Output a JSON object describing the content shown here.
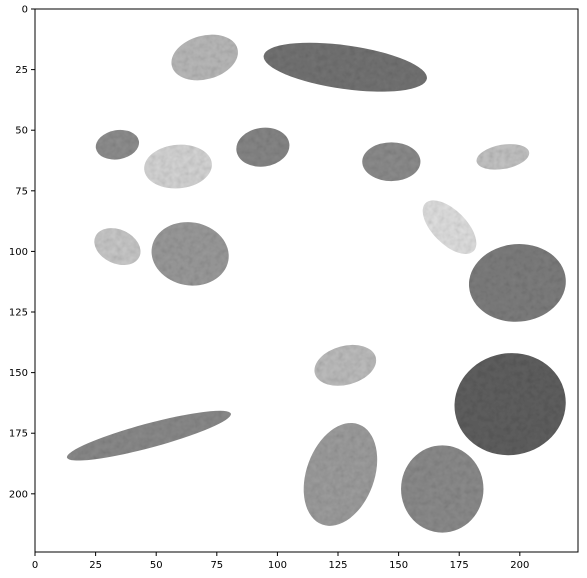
{
  "image_panel": {
    "description_source": "grayscale segmented cell nuclei on white background, displayed with matplotlib-style axes",
    "x_ticks": [
      "0",
      "25",
      "50",
      "75",
      "100",
      "125",
      "150",
      "175",
      "200"
    ],
    "y_ticks": [
      "0",
      "25",
      "50",
      "75",
      "100",
      "125",
      "150",
      "175",
      "200"
    ],
    "x_range": [
      0,
      224
    ],
    "y_range": [
      0,
      224
    ],
    "grid": false,
    "colormap": "gray"
  },
  "nuclei": [
    {
      "name": "nucleus-1",
      "cx": 70,
      "cy": 20,
      "rx": 14,
      "ry": 9,
      "rot": -15,
      "shade": "#b9b9b9"
    },
    {
      "name": "nucleus-2",
      "cx": 128,
      "cy": 24,
      "rx": 34,
      "ry": 9,
      "rot": 8,
      "shade": "#737373"
    },
    {
      "name": "nucleus-3",
      "cx": 34,
      "cy": 56,
      "rx": 9,
      "ry": 6,
      "rot": -10,
      "shade": "#8e8e8e"
    },
    {
      "name": "nucleus-4",
      "cx": 59,
      "cy": 65,
      "rx": 14,
      "ry": 9,
      "rot": -5,
      "shade": "#d5d5d5"
    },
    {
      "name": "nucleus-5",
      "cx": 94,
      "cy": 57,
      "rx": 11,
      "ry": 8,
      "rot": -8,
      "shade": "#868686"
    },
    {
      "name": "nucleus-6",
      "cx": 147,
      "cy": 63,
      "rx": 12,
      "ry": 8,
      "rot": 0,
      "shade": "#8c8c8c"
    },
    {
      "name": "nucleus-7",
      "cx": 193,
      "cy": 61,
      "rx": 11,
      "ry": 5,
      "rot": -10,
      "shade": "#c3c3c3"
    },
    {
      "name": "nucleus-8",
      "cx": 171,
      "cy": 90,
      "rx": 14,
      "ry": 7,
      "rot": 45,
      "shade": "#e0e0e0"
    },
    {
      "name": "nucleus-9",
      "cx": 34,
      "cy": 98,
      "rx": 10,
      "ry": 7,
      "rot": 25,
      "shade": "#c8c8c8"
    },
    {
      "name": "nucleus-10",
      "cx": 64,
      "cy": 101,
      "rx": 16,
      "ry": 13,
      "rot": 10,
      "shade": "#9a9a9a"
    },
    {
      "name": "nucleus-11",
      "cx": 199,
      "cy": 113,
      "rx": 20,
      "ry": 16,
      "rot": -5,
      "shade": "#7d7d7d"
    },
    {
      "name": "nucleus-12",
      "cx": 128,
      "cy": 147,
      "rx": 13,
      "ry": 8,
      "rot": -15,
      "shade": "#bdbdbd"
    },
    {
      "name": "nucleus-13",
      "cx": 196,
      "cy": 163,
      "rx": 23,
      "ry": 21,
      "rot": -10,
      "shade": "#5f5f5f"
    },
    {
      "name": "nucleus-14",
      "cx": 47,
      "cy": 176,
      "rx": 35,
      "ry": 5,
      "rot": -15,
      "shade": "#8a8a8a"
    },
    {
      "name": "nucleus-15",
      "cx": 126,
      "cy": 192,
      "rx": 14,
      "ry": 22,
      "rot": 20,
      "shade": "#9d9d9d"
    },
    {
      "name": "nucleus-16",
      "cx": 168,
      "cy": 198,
      "rx": 17,
      "ry": 18,
      "rot": 0,
      "shade": "#8b8b8b"
    }
  ]
}
